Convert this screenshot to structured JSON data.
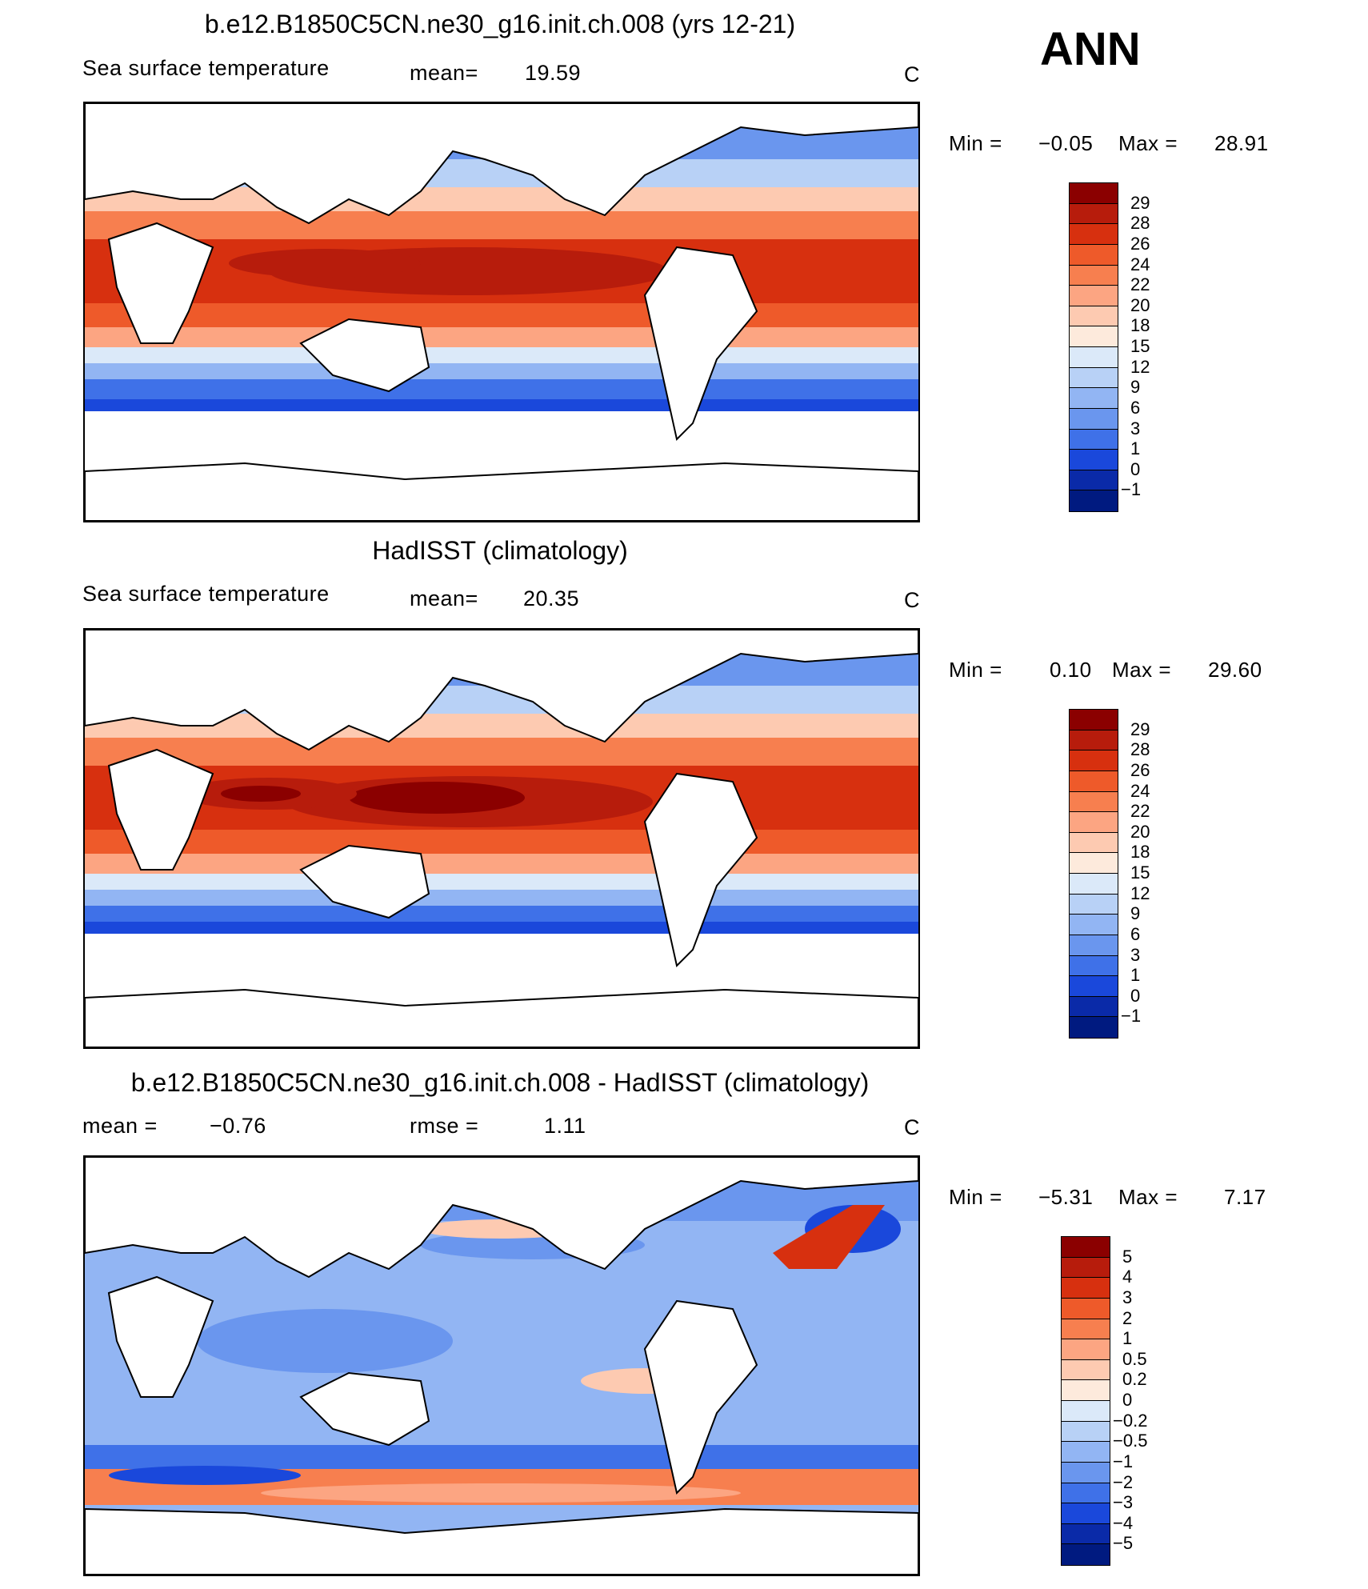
{
  "ann_label": "ANN",
  "chart_data": [
    {
      "type": "heatmap",
      "title": "b.e12.B1850C5CN.ne30_g16.init.ch.008 (yrs 12-21)",
      "left_label": "Sea surface temperature",
      "mean_label": "mean=",
      "mean_value": "19.59",
      "units": "C",
      "min_label": "Min =",
      "min_value": "−0.05",
      "max_label": "Max =",
      "max_value": "28.91",
      "colorbar": {
        "levels": [
          "29",
          "28",
          "26",
          "24",
          "22",
          "20",
          "18",
          "15",
          "12",
          "9",
          "6",
          "3",
          "1",
          "0",
          "−1"
        ],
        "colors": [
          "#8b0000",
          "#b71c0c",
          "#d7300f",
          "#ee5a2a",
          "#f77f4f",
          "#fca582",
          "#fdcab1",
          "#fdeadc",
          "#dbe9f9",
          "#b8d1f6",
          "#92b5f3",
          "#6a96ee",
          "#3f71e8",
          "#1a48db",
          "#0a2aa8",
          "#001a80"
        ]
      },
      "x_range": [
        0,
        360
      ],
      "y_range": [
        -90,
        90
      ]
    },
    {
      "type": "heatmap",
      "title": "HadISST (climatology)",
      "left_label": "Sea surface temperature",
      "mean_label": "mean=",
      "mean_value": "20.35",
      "units": "C",
      "min_label": "Min =",
      "min_value": "0.10",
      "max_label": "Max =",
      "max_value": "29.60",
      "colorbar": {
        "levels": [
          "29",
          "28",
          "26",
          "24",
          "22",
          "20",
          "18",
          "15",
          "12",
          "9",
          "6",
          "3",
          "1",
          "0",
          "−1"
        ],
        "colors": [
          "#8b0000",
          "#b71c0c",
          "#d7300f",
          "#ee5a2a",
          "#f77f4f",
          "#fca582",
          "#fdcab1",
          "#fdeadc",
          "#dbe9f9",
          "#b8d1f6",
          "#92b5f3",
          "#6a96ee",
          "#3f71e8",
          "#1a48db",
          "#0a2aa8",
          "#001a80"
        ]
      },
      "x_range": [
        0,
        360
      ],
      "y_range": [
        -90,
        90
      ]
    },
    {
      "type": "heatmap",
      "title": "b.e12.B1850C5CN.ne30_g16.init.ch.008 - HadISST (climatology)",
      "mean_label": "mean =",
      "mean_value": "−0.76",
      "rmse_label": "rmse =",
      "rmse_value": "1.11",
      "units": "C",
      "min_label": "Min =",
      "min_value": "−5.31",
      "max_label": "Max =",
      "max_value": "7.17",
      "colorbar": {
        "levels": [
          "5",
          "4",
          "3",
          "2",
          "1",
          "0.5",
          "0.2",
          "0",
          "−0.2",
          "−0.5",
          "−1",
          "−2",
          "−3",
          "−4",
          "−5"
        ],
        "colors": [
          "#8b0000",
          "#b71c0c",
          "#d7300f",
          "#ee5a2a",
          "#f77f4f",
          "#fca582",
          "#fdcab1",
          "#fdeadc",
          "#dbe9f9",
          "#b8d1f6",
          "#92b5f3",
          "#6a96ee",
          "#3f71e8",
          "#1a48db",
          "#0a2aa8",
          "#001a80"
        ]
      },
      "x_range": [
        0,
        360
      ],
      "y_range": [
        -90,
        90
      ]
    }
  ]
}
